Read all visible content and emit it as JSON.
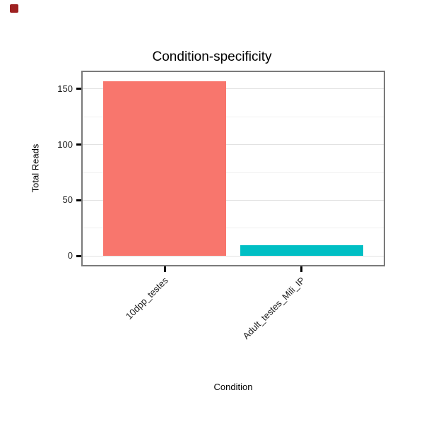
{
  "figure": {
    "marker_color": "#9e2121"
  },
  "chart_data": {
    "type": "bar",
    "title": "Condition-specificity",
    "xlabel": "Condition",
    "ylabel": "Total Reads",
    "categories": [
      "10dpp_testes",
      "Adult_testes_Mili_IP"
    ],
    "values": [
      157,
      10
    ],
    "bar_colors": [
      "#F8766D",
      "#00BFC4"
    ],
    "y_ticks": [
      0,
      50,
      100,
      150
    ],
    "y_minor_ticks": [
      25,
      75,
      125
    ],
    "ylim": [
      -8,
      165
    ],
    "grid": true,
    "legend": "none",
    "panel_border_color": "#7a7a7a",
    "major_grid_color": "#e2e2e2",
    "minor_grid_color": "#f1f1f1",
    "tick_color": "#000000",
    "text_color": "#1a1a1a"
  }
}
